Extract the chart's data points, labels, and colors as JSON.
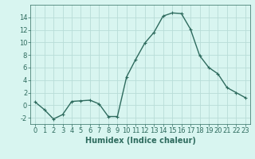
{
  "x": [
    0,
    1,
    2,
    3,
    4,
    5,
    6,
    7,
    8,
    9,
    10,
    11,
    12,
    13,
    14,
    15,
    16,
    17,
    18,
    19,
    20,
    21,
    22,
    23
  ],
  "y": [
    0.5,
    -0.7,
    -2.2,
    -1.5,
    0.6,
    0.7,
    0.8,
    0.2,
    -1.8,
    -1.8,
    4.5,
    7.3,
    9.9,
    11.6,
    14.2,
    14.7,
    14.6,
    12.1,
    7.9,
    6.0,
    5.0,
    2.8,
    2.0,
    1.2
  ],
  "line_color": "#2e6b5e",
  "marker": "+",
  "markersize": 3,
  "linewidth": 1.0,
  "bg_color": "#d8f5f0",
  "grid_color": "#b8ddd8",
  "xlabel": "Humidex (Indice chaleur)",
  "xlabel_fontsize": 7,
  "tick_fontsize": 6,
  "ylim": [
    -3,
    16
  ],
  "xlim": [
    -0.5,
    23.5
  ],
  "yticks": [
    -2,
    0,
    2,
    4,
    6,
    8,
    10,
    12,
    14
  ],
  "xticks": [
    0,
    1,
    2,
    3,
    4,
    5,
    6,
    7,
    8,
    9,
    10,
    11,
    12,
    13,
    14,
    15,
    16,
    17,
    18,
    19,
    20,
    21,
    22,
    23
  ]
}
